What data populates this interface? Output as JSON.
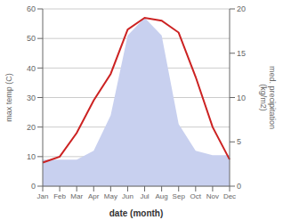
{
  "chart_data": {
    "type": "line",
    "categories": [
      "Jan",
      "Feb",
      "Mar",
      "Apr",
      "May",
      "Jun",
      "Jul",
      "Aug",
      "Sep",
      "Oct",
      "Nov",
      "Dec"
    ],
    "series": [
      {
        "type": "area",
        "axis": "y2",
        "color": "#c8d0ef",
        "values": [
          3,
          3,
          3,
          4,
          8,
          17,
          19,
          17,
          7,
          4,
          3.5,
          3.5
        ]
      },
      {
        "type": "line",
        "color": "#cc2222",
        "values": [
          8,
          10,
          18,
          29,
          38,
          53,
          57,
          56,
          52,
          37,
          20,
          9
        ]
      }
    ],
    "xlabel": "date (month)",
    "ylabel": "max temp (C)",
    "y2label": "med. precipitation\n(kg/m2)",
    "ylim": [
      0,
      60
    ],
    "yticks": [
      0,
      10,
      20,
      30,
      40,
      50,
      60
    ],
    "y2lim": [
      0,
      20
    ],
    "y2ticks": [
      0,
      5,
      10,
      15,
      20
    ],
    "grid": true
  }
}
